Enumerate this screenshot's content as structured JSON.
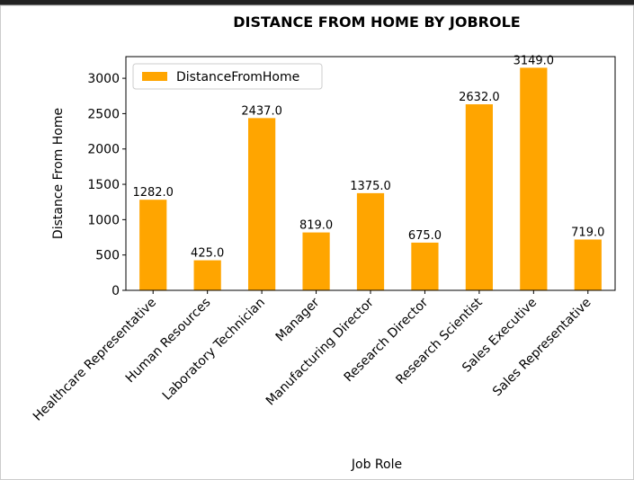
{
  "chart_data": {
    "type": "bar",
    "title": "DISTANCE FROM HOME BY JOBROLE",
    "x_label": "Job Role",
    "y_label": "Distance From Home",
    "categories": [
      "Healthcare Representative",
      "Human Resources",
      "Laboratory Technician",
      "Manager",
      "Manufacturing Director",
      "Research Director",
      "Research Scientist",
      "Sales Executive",
      "Sales Representative"
    ],
    "series": [
      {
        "name": "DistanceFromHome",
        "color": "#ffa500",
        "values": [
          1282,
          425,
          2437,
          819,
          1375,
          675,
          2632,
          3149,
          719
        ],
        "value_labels": [
          "1282.0",
          "425.0",
          "2437.0",
          "819.0",
          "1375.0",
          "675.0",
          "2632.0",
          "3149.0",
          "719.0"
        ]
      }
    ],
    "ylim": [
      0,
      3306.45
    ],
    "yticks": [
      0,
      500,
      1000,
      1500,
      2000,
      2500,
      3000
    ],
    "legend": "upper left",
    "grid": false
  }
}
